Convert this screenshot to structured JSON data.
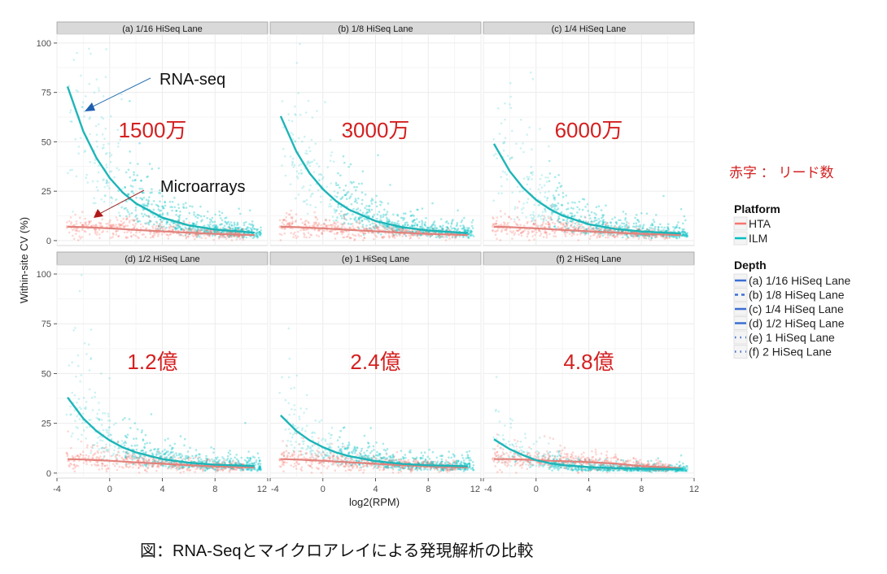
{
  "chart_data": {
    "type": "scatter",
    "xlabel": "log2(RPM)",
    "ylabel": "Within-site CV (%)",
    "xlim": [
      -4,
      12
    ],
    "ylim": [
      -2.5,
      104.5
    ],
    "xticks": [
      "-4",
      "0",
      "4",
      "8",
      "12"
    ],
    "yticks": [
      "0",
      "25",
      "50",
      "75",
      "100"
    ],
    "grid": true,
    "colors": {
      "HTA": "#F8766D",
      "ILM": "#00BFC4"
    },
    "fit_x": [
      -3.2,
      -2,
      -1,
      0,
      1,
      2,
      4,
      6,
      8,
      11
    ],
    "panels": [
      {
        "title": "(a) 1/16 HiSeq Lane",
        "read_count": "1500万",
        "ILM_fit": [
          78,
          55.3,
          41.8,
          31.7,
          24.3,
          18.8,
          11.6,
          7.7,
          5.6,
          4.0
        ],
        "HTA_fit": [
          7,
          6.8,
          6.5,
          6.2,
          5.8,
          5.4,
          4.7,
          4.0,
          3.4,
          2.8
        ]
      },
      {
        "title": "(b) 1/8  HiSeq Lane",
        "read_count": "3000万",
        "ILM_fit": [
          63,
          44.9,
          34.0,
          26.0,
          20.0,
          15.6,
          9.9,
          6.8,
          5.1,
          3.8
        ],
        "HTA_fit": [
          7,
          6.8,
          6.5,
          6.2,
          5.8,
          5.4,
          4.7,
          4.0,
          3.4,
          2.8
        ]
      },
      {
        "title": "(c) 1/4  HiSeq Lane",
        "read_count": "6000万",
        "ILM_fit": [
          49,
          35.1,
          26.8,
          20.6,
          16.1,
          12.7,
          8.3,
          5.9,
          4.6,
          3.6
        ],
        "HTA_fit": [
          7,
          6.8,
          6.5,
          6.2,
          5.8,
          5.4,
          4.7,
          4.0,
          3.4,
          2.8
        ]
      },
      {
        "title": "(d) 1/2  HiSeq Lane",
        "read_count": "1.2億",
        "ILM_fit": [
          38,
          27.4,
          21.1,
          16.4,
          12.9,
          10.4,
          7.0,
          5.2,
          4.2,
          3.5
        ],
        "HTA_fit": [
          7,
          6.8,
          6.5,
          6.2,
          5.8,
          5.4,
          4.7,
          4.0,
          3.4,
          2.8
        ]
      },
      {
        "title": "(e) 1 HiSeq Lane",
        "read_count": "2.4億",
        "ILM_fit": [
          29,
          21.1,
          16.4,
          13.0,
          10.4,
          8.5,
          6.0,
          4.6,
          3.9,
          3.4
        ],
        "HTA_fit": [
          7,
          6.8,
          6.5,
          6.2,
          5.8,
          5.4,
          4.7,
          4.0,
          3.4,
          2.8
        ]
      },
      {
        "title": "(f) 2  HiSeq Lane",
        "read_count": "4.8億",
        "ILM_fit": [
          17,
          12,
          9,
          6.5,
          5,
          4,
          3,
          2.5,
          2.2,
          2
        ],
        "HTA_fit": [
          7,
          7,
          6.8,
          6.5,
          6.2,
          6,
          5.5,
          4.8,
          3.5,
          2.5
        ]
      }
    ],
    "annotations": {
      "rna_seq": "RNA-seq",
      "microarrays": "Microarrays"
    },
    "legend": {
      "placement": "right",
      "platform_title": "Platform",
      "platform_items": [
        "HTA",
        "ILM"
      ],
      "depth_title": "Depth",
      "depth_items": [
        "(a) 1/16 HiSeq Lane",
        "(b) 1/8  HiSeq Lane",
        "(c) 1/4  HiSeq Lane",
        "(d) 1/2  HiSeq Lane",
        "(e) 1 HiSeq Lane",
        "(f) 2  HiSeq Lane"
      ]
    }
  },
  "note": "赤字 ： リード数",
  "caption": "図：RNA-Seqとマイクロアレイによる発現解析の比較"
}
